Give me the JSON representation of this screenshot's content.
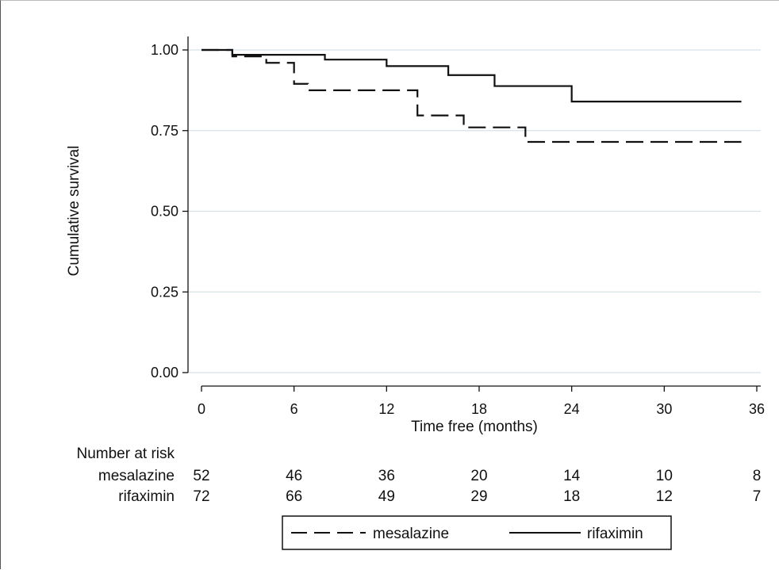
{
  "chart_data": {
    "type": "line",
    "step": true,
    "xlabel": "Time free (months)",
    "ylabel": "Cumulative survival",
    "xlim": [
      0,
      36
    ],
    "ylim": [
      0,
      1
    ],
    "x_ticks": [
      0,
      6,
      12,
      18,
      24,
      30,
      36
    ],
    "y_ticks": [
      "0.00",
      "0.25",
      "0.50",
      "0.75",
      "1.00"
    ],
    "grid": "horizontal",
    "legend_position": "bottom",
    "series": [
      {
        "name": "mesalazine",
        "style": "dashed",
        "color": "#111111",
        "points": [
          [
            0,
            1.0
          ],
          [
            2,
            0.98
          ],
          [
            4.2,
            0.96
          ],
          [
            6,
            0.895
          ],
          [
            6.9,
            0.875
          ],
          [
            13,
            0.875
          ],
          [
            14,
            0.797
          ],
          [
            16.8,
            0.797
          ],
          [
            17,
            0.76
          ],
          [
            21,
            0.76
          ],
          [
            21,
            0.715
          ],
          [
            35,
            0.715
          ]
        ]
      },
      {
        "name": "rifaximin",
        "style": "solid",
        "color": "#111111",
        "points": [
          [
            0,
            1.0
          ],
          [
            2,
            0.985
          ],
          [
            8,
            0.985
          ],
          [
            8,
            0.97
          ],
          [
            12,
            0.97
          ],
          [
            12,
            0.95
          ],
          [
            16,
            0.95
          ],
          [
            16,
            0.922
          ],
          [
            19,
            0.922
          ],
          [
            19,
            0.888
          ],
          [
            24,
            0.888
          ],
          [
            24,
            0.84
          ],
          [
            35,
            0.84
          ]
        ]
      }
    ],
    "risk_table": {
      "title": "Number at risk",
      "times": [
        0,
        6,
        12,
        18,
        24,
        30,
        36
      ],
      "rows": [
        {
          "label": "mesalazine",
          "values": [
            "52",
            "46",
            "36",
            "20",
            "14",
            "10",
            "8"
          ]
        },
        {
          "label": "rifaximin",
          "values": [
            "72",
            "66",
            "49",
            "29",
            "18",
            "12",
            "7"
          ]
        }
      ]
    }
  }
}
